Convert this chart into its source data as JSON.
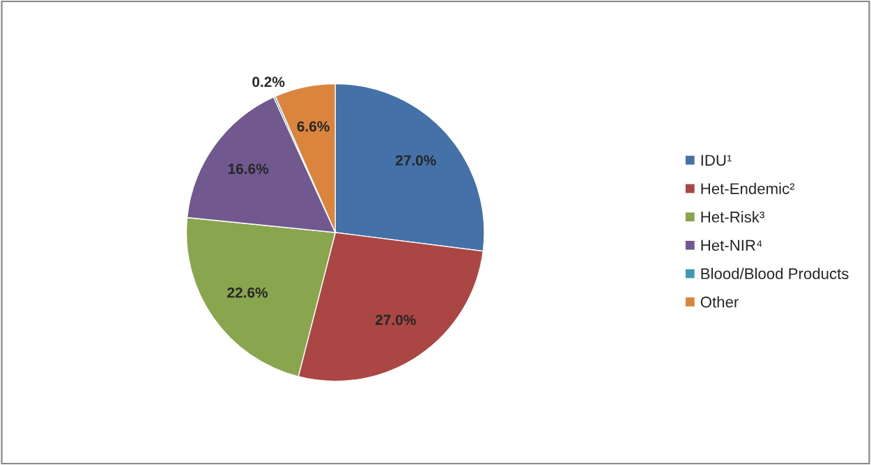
{
  "chart_data": {
    "type": "pie",
    "categories": [
      "IDU¹",
      "Het-Endemic²",
      "Het-Risk³",
      "Het-NIR⁴",
      "Blood/Blood Products",
      "Other"
    ],
    "values": [
      27.0,
      27.0,
      22.6,
      16.6,
      0.2,
      6.6
    ],
    "value_labels": [
      "27.0%",
      "27.0%",
      "22.6%",
      "16.6%",
      "0.2%",
      "6.6%"
    ],
    "colors": [
      "#4472a8",
      "#aa4643",
      "#89a54e",
      "#71588f",
      "#4198af",
      "#db843d"
    ],
    "legend": "right"
  }
}
